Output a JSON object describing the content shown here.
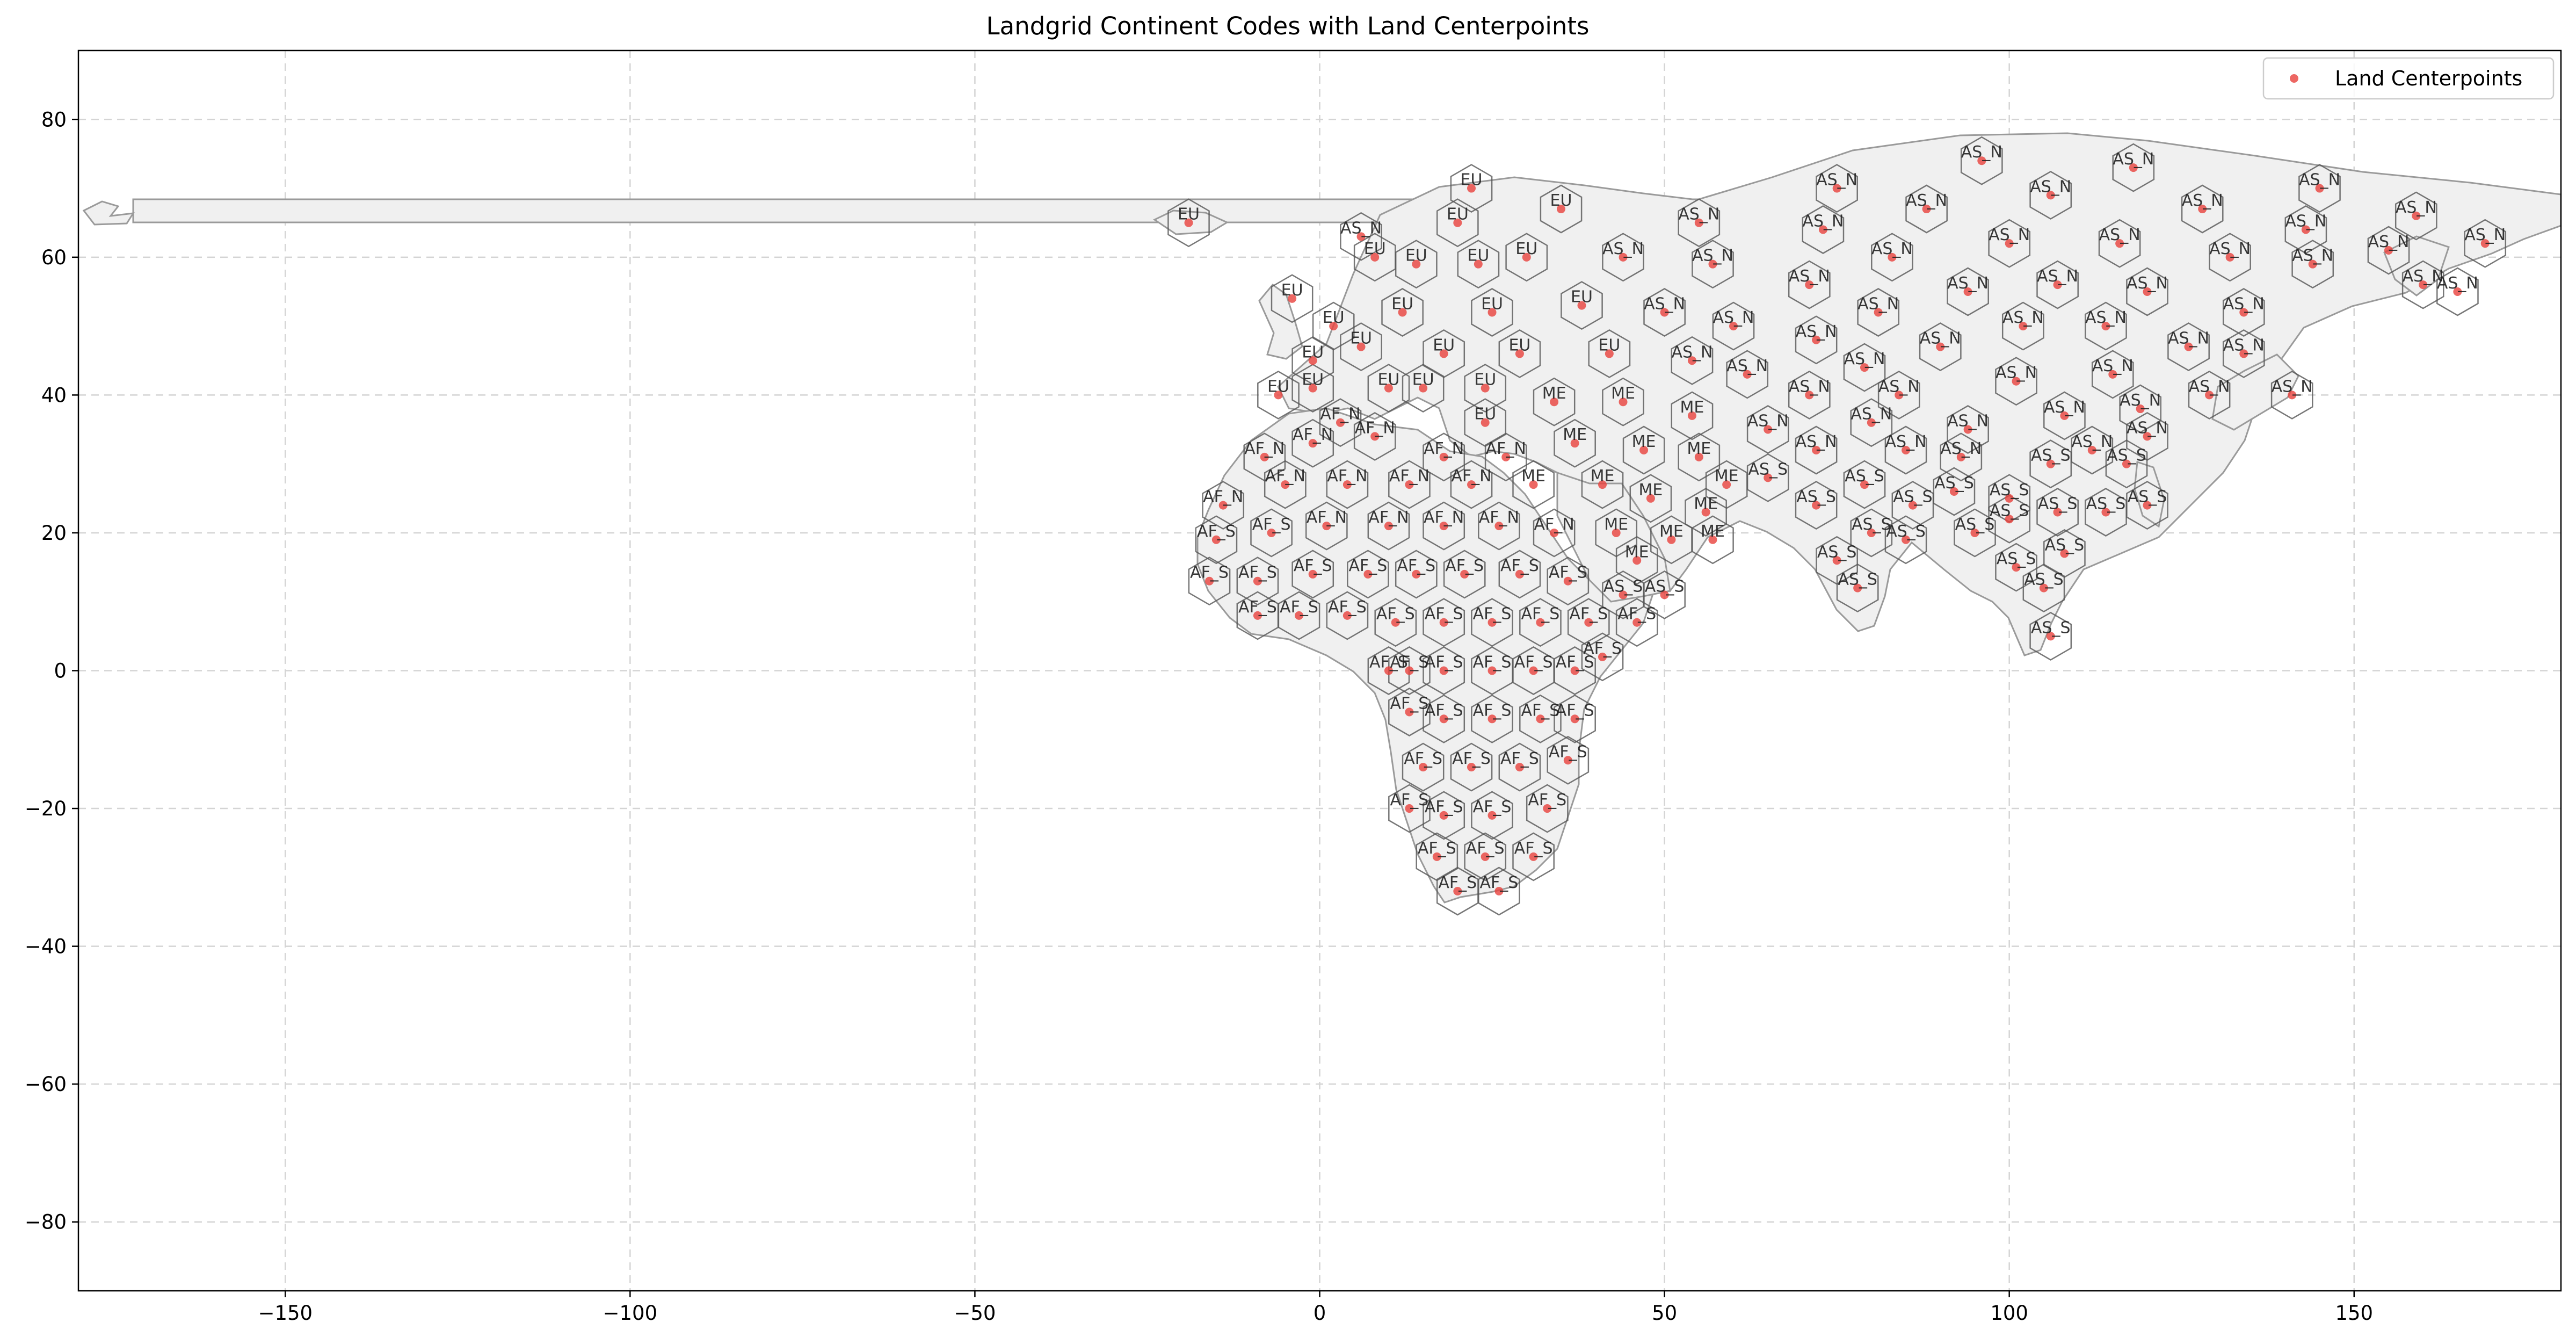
{
  "chart_data": {
    "type": "scatter",
    "title": "Landgrid Continent Codes with Land Centerpoints",
    "xlabel": "",
    "ylabel": "",
    "xlim": [
      -180,
      180
    ],
    "ylim": [
      -90,
      90
    ],
    "grid": true,
    "xticks": [
      -150,
      -100,
      -50,
      0,
      50,
      100,
      150
    ],
    "xtick_labels": [
      "−150",
      "−100",
      "−50",
      "0",
      "50",
      "100",
      "150"
    ],
    "yticks": [
      80,
      60,
      40,
      20,
      0,
      -20,
      -40,
      -60,
      -80
    ],
    "ytick_labels": [
      "80",
      "60",
      "40",
      "20",
      "0",
      "−20",
      "−40",
      "−60",
      "−80"
    ],
    "legend": {
      "placement": "top-right",
      "entries": [
        "Land Centerpoints"
      ]
    },
    "colors": {
      "points": "#e8413c",
      "cells_fill": "#f0f0f0",
      "cells_edge": "#555555",
      "grid": "#d4d4d4"
    },
    "series": [
      {
        "name": "Land Centerpoints",
        "points": [
          {
            "x": -19,
            "y": 65,
            "label": "EU"
          },
          {
            "x": 6,
            "y": 63,
            "label": "AS_N"
          },
          {
            "x": 22,
            "y": 70,
            "label": "EU"
          },
          {
            "x": 20,
            "y": 65,
            "label": "EU"
          },
          {
            "x": 35,
            "y": 67,
            "label": "EU"
          },
          {
            "x": 55,
            "y": 65,
            "label": "AS_N"
          },
          {
            "x": 75,
            "y": 70,
            "label": "AS_N"
          },
          {
            "x": 73,
            "y": 64,
            "label": "AS_N"
          },
          {
            "x": 88,
            "y": 67,
            "label": "AS_N"
          },
          {
            "x": 96,
            "y": 74,
            "label": "AS_N"
          },
          {
            "x": 106,
            "y": 69,
            "label": "AS_N"
          },
          {
            "x": 118,
            "y": 73,
            "label": "AS_N"
          },
          {
            "x": 128,
            "y": 67,
            "label": "AS_N"
          },
          {
            "x": 145,
            "y": 70,
            "label": "AS_N"
          },
          {
            "x": 159,
            "y": 66,
            "label": "AS_N"
          },
          {
            "x": 8,
            "y": 60,
            "label": "EU"
          },
          {
            "x": 14,
            "y": 59,
            "label": "EU"
          },
          {
            "x": 23,
            "y": 59,
            "label": "EU"
          },
          {
            "x": 30,
            "y": 60,
            "label": "EU"
          },
          {
            "x": 44,
            "y": 60,
            "label": "AS_N"
          },
          {
            "x": 57,
            "y": 59,
            "label": "AS_N"
          },
          {
            "x": 71,
            "y": 56,
            "label": "AS_N"
          },
          {
            "x": 83,
            "y": 60,
            "label": "AS_N"
          },
          {
            "x": 100,
            "y": 62,
            "label": "AS_N"
          },
          {
            "x": 116,
            "y": 62,
            "label": "AS_N"
          },
          {
            "x": 132,
            "y": 60,
            "label": "AS_N"
          },
          {
            "x": 143,
            "y": 64,
            "label": "AS_N"
          },
          {
            "x": 144,
            "y": 59,
            "label": "AS_N"
          },
          {
            "x": 155,
            "y": 61,
            "label": "AS_N"
          },
          {
            "x": 169,
            "y": 62,
            "label": "AS_N"
          },
          {
            "x": -4,
            "y": 54,
            "label": "EU"
          },
          {
            "x": 2,
            "y": 50,
            "label": "EU"
          },
          {
            "x": 12,
            "y": 52,
            "label": "EU"
          },
          {
            "x": 25,
            "y": 52,
            "label": "EU"
          },
          {
            "x": 38,
            "y": 53,
            "label": "EU"
          },
          {
            "x": 50,
            "y": 52,
            "label": "AS_N"
          },
          {
            "x": 60,
            "y": 50,
            "label": "AS_N"
          },
          {
            "x": 81,
            "y": 52,
            "label": "AS_N"
          },
          {
            "x": 94,
            "y": 55,
            "label": "AS_N"
          },
          {
            "x": 107,
            "y": 56,
            "label": "AS_N"
          },
          {
            "x": 120,
            "y": 55,
            "label": "AS_N"
          },
          {
            "x": 134,
            "y": 52,
            "label": "AS_N"
          },
          {
            "x": 160,
            "y": 56,
            "label": "AS_N"
          },
          {
            "x": 165,
            "y": 55,
            "label": "AS_N"
          },
          {
            "x": -1,
            "y": 45,
            "label": "EU"
          },
          {
            "x": 6,
            "y": 47,
            "label": "EU"
          },
          {
            "x": 18,
            "y": 46,
            "label": "EU"
          },
          {
            "x": 29,
            "y": 46,
            "label": "EU"
          },
          {
            "x": 42,
            "y": 46,
            "label": "EU"
          },
          {
            "x": 54,
            "y": 45,
            "label": "AS_N"
          },
          {
            "x": 62,
            "y": 43,
            "label": "AS_N"
          },
          {
            "x": 72,
            "y": 48,
            "label": "AS_N"
          },
          {
            "x": 79,
            "y": 44,
            "label": "AS_N"
          },
          {
            "x": 90,
            "y": 47,
            "label": "AS_N"
          },
          {
            "x": 102,
            "y": 50,
            "label": "AS_N"
          },
          {
            "x": 114,
            "y": 50,
            "label": "AS_N"
          },
          {
            "x": 126,
            "y": 47,
            "label": "AS_N"
          },
          {
            "x": 134,
            "y": 46,
            "label": "AS_N"
          },
          {
            "x": -6,
            "y": 40,
            "label": "EU"
          },
          {
            "x": -1,
            "y": 41,
            "label": "EU"
          },
          {
            "x": 10,
            "y": 41,
            "label": "EU"
          },
          {
            "x": 15,
            "y": 41,
            "label": "EU"
          },
          {
            "x": 24,
            "y": 41,
            "label": "EU"
          },
          {
            "x": 34,
            "y": 39,
            "label": "ME"
          },
          {
            "x": 44,
            "y": 39,
            "label": "ME"
          },
          {
            "x": 54,
            "y": 37,
            "label": "ME"
          },
          {
            "x": 65,
            "y": 35,
            "label": "AS_N"
          },
          {
            "x": 71,
            "y": 40,
            "label": "AS_N"
          },
          {
            "x": 84,
            "y": 40,
            "label": "AS_N"
          },
          {
            "x": 94,
            "y": 35,
            "label": "AS_N"
          },
          {
            "x": 101,
            "y": 42,
            "label": "AS_N"
          },
          {
            "x": 108,
            "y": 37,
            "label": "AS_N"
          },
          {
            "x": 115,
            "y": 43,
            "label": "AS_N"
          },
          {
            "x": 119,
            "y": 38,
            "label": "AS_N"
          },
          {
            "x": 129,
            "y": 40,
            "label": "AS_N"
          },
          {
            "x": 141,
            "y": 40,
            "label": "AS_N"
          },
          {
            "x": 3,
            "y": 36,
            "label": "AF_N"
          },
          {
            "x": 8,
            "y": 34,
            "label": "AF_N"
          },
          {
            "x": 24,
            "y": 36,
            "label": "EU"
          },
          {
            "x": 37,
            "y": 33,
            "label": "ME"
          },
          {
            "x": 47,
            "y": 32,
            "label": "ME"
          },
          {
            "x": 55,
            "y": 31,
            "label": "ME"
          },
          {
            "x": 59,
            "y": 27,
            "label": "ME"
          },
          {
            "x": 72,
            "y": 32,
            "label": "AS_N"
          },
          {
            "x": 80,
            "y": 36,
            "label": "AS_N"
          },
          {
            "x": 85,
            "y": 32,
            "label": "AS_N"
          },
          {
            "x": 93,
            "y": 31,
            "label": "AS_N"
          },
          {
            "x": 106,
            "y": 30,
            "label": "AS_S"
          },
          {
            "x": 112,
            "y": 32,
            "label": "AS_N"
          },
          {
            "x": 117,
            "y": 30,
            "label": "AS_S"
          },
          {
            "x": 120,
            "y": 34,
            "label": "AS_N"
          },
          {
            "x": -8,
            "y": 31,
            "label": "AF_N"
          },
          {
            "x": -1,
            "y": 33,
            "label": "AF_N"
          },
          {
            "x": 18,
            "y": 31,
            "label": "AF_N"
          },
          {
            "x": 27,
            "y": 31,
            "label": "AF_N"
          },
          {
            "x": 31,
            "y": 27,
            "label": "ME"
          },
          {
            "x": 41,
            "y": 27,
            "label": "ME"
          },
          {
            "x": 48,
            "y": 25,
            "label": "ME"
          },
          {
            "x": 65,
            "y": 28,
            "label": "AS_S"
          },
          {
            "x": 72,
            "y": 24,
            "label": "AS_S"
          },
          {
            "x": 79,
            "y": 27,
            "label": "AS_S"
          },
          {
            "x": 86,
            "y": 24,
            "label": "AS_S"
          },
          {
            "x": 92,
            "y": 26,
            "label": "AS_S"
          },
          {
            "x": 100,
            "y": 25,
            "label": "AS_S"
          },
          {
            "x": 114,
            "y": 23,
            "label": "AS_S"
          },
          {
            "x": 120,
            "y": 24,
            "label": "AS_S"
          },
          {
            "x": -14,
            "y": 24,
            "label": "AF_N"
          },
          {
            "x": -5,
            "y": 27,
            "label": "AF_N"
          },
          {
            "x": 4,
            "y": 27,
            "label": "AF_N"
          },
          {
            "x": 13,
            "y": 27,
            "label": "AF_N"
          },
          {
            "x": 22,
            "y": 27,
            "label": "AF_N"
          },
          {
            "x": 56,
            "y": 23,
            "label": "ME"
          },
          {
            "x": 43,
            "y": 20,
            "label": "ME"
          },
          {
            "x": 51,
            "y": 19,
            "label": "ME"
          },
          {
            "x": 57,
            "y": 19,
            "label": "ME"
          },
          {
            "x": 80,
            "y": 20,
            "label": "AS_S"
          },
          {
            "x": 85,
            "y": 19,
            "label": "AS_S"
          },
          {
            "x": 95,
            "y": 20,
            "label": "AS_S"
          },
          {
            "x": 100,
            "y": 22,
            "label": "AS_S"
          },
          {
            "x": 107,
            "y": 23,
            "label": "AS_S"
          },
          {
            "x": 108,
            "y": 17,
            "label": "AS_S"
          },
          {
            "x": -15,
            "y": 19,
            "label": "AF_S"
          },
          {
            "x": -7,
            "y": 20,
            "label": "AF_S"
          },
          {
            "x": 1,
            "y": 21,
            "label": "AF_N"
          },
          {
            "x": 10,
            "y": 21,
            "label": "AF_N"
          },
          {
            "x": 18,
            "y": 21,
            "label": "AF_N"
          },
          {
            "x": 26,
            "y": 21,
            "label": "AF_N"
          },
          {
            "x": 34,
            "y": 20,
            "label": "AF_N"
          },
          {
            "x": 46,
            "y": 16,
            "label": "ME"
          },
          {
            "x": 75,
            "y": 16,
            "label": "AS_S"
          },
          {
            "x": 78,
            "y": 12,
            "label": "AS_S"
          },
          {
            "x": 101,
            "y": 15,
            "label": "AS_S"
          },
          {
            "x": 105,
            "y": 12,
            "label": "AS_S"
          },
          {
            "x": -16,
            "y": 13,
            "label": "AF_S"
          },
          {
            "x": -9,
            "y": 13,
            "label": "AF_S"
          },
          {
            "x": -1,
            "y": 14,
            "label": "AF_S"
          },
          {
            "x": 7,
            "y": 14,
            "label": "AF_S"
          },
          {
            "x": 14,
            "y": 14,
            "label": "AF_S"
          },
          {
            "x": 21,
            "y": 14,
            "label": "AF_S"
          },
          {
            "x": 29,
            "y": 14,
            "label": "AF_S"
          },
          {
            "x": 36,
            "y": 13,
            "label": "AF_S"
          },
          {
            "x": 44,
            "y": 11,
            "label": "AS_S"
          },
          {
            "x": 50,
            "y": 11,
            "label": "AS_S"
          },
          {
            "x": -9,
            "y": 8,
            "label": "AF_S"
          },
          {
            "x": -3,
            "y": 8,
            "label": "AF_S"
          },
          {
            "x": 4,
            "y": 8,
            "label": "AF_S"
          },
          {
            "x": 11,
            "y": 7,
            "label": "AF_S"
          },
          {
            "x": 18,
            "y": 7,
            "label": "AF_S"
          },
          {
            "x": 25,
            "y": 7,
            "label": "AF_S"
          },
          {
            "x": 32,
            "y": 7,
            "label": "AF_S"
          },
          {
            "x": 39,
            "y": 7,
            "label": "AF_S"
          },
          {
            "x": 46,
            "y": 7,
            "label": "AF_S"
          },
          {
            "x": 106,
            "y": 5,
            "label": "AS_S"
          },
          {
            "x": 10,
            "y": 0,
            "label": "AF_S"
          },
          {
            "x": 13,
            "y": 0,
            "label": "AF_S"
          },
          {
            "x": 18,
            "y": 0,
            "label": "AF_S"
          },
          {
            "x": 25,
            "y": 0,
            "label": "AF_S"
          },
          {
            "x": 31,
            "y": 0,
            "label": "AF_S"
          },
          {
            "x": 37,
            "y": 0,
            "label": "AF_S"
          },
          {
            "x": 41,
            "y": 2,
            "label": "AF_S"
          },
          {
            "x": 13,
            "y": -6,
            "label": "AF_S"
          },
          {
            "x": 18,
            "y": -7,
            "label": "AF_S"
          },
          {
            "x": 25,
            "y": -7,
            "label": "AF_S"
          },
          {
            "x": 32,
            "y": -7,
            "label": "AF_S"
          },
          {
            "x": 37,
            "y": -7,
            "label": "AF_S"
          },
          {
            "x": 15,
            "y": -14,
            "label": "AF_S"
          },
          {
            "x": 22,
            "y": -14,
            "label": "AF_S"
          },
          {
            "x": 29,
            "y": -14,
            "label": "AF_S"
          },
          {
            "x": 36,
            "y": -13,
            "label": "AF_S"
          },
          {
            "x": 13,
            "y": -20,
            "label": "AF_S"
          },
          {
            "x": 18,
            "y": -21,
            "label": "AF_S"
          },
          {
            "x": 25,
            "y": -21,
            "label": "AF_S"
          },
          {
            "x": 33,
            "y": -20,
            "label": "AF_S"
          },
          {
            "x": 17,
            "y": -27,
            "label": "AF_S"
          },
          {
            "x": 24,
            "y": -27,
            "label": "AF_S"
          },
          {
            "x": 31,
            "y": -27,
            "label": "AF_S"
          },
          {
            "x": 20,
            "y": -32,
            "label": "AF_S"
          },
          {
            "x": 26,
            "y": -32,
            "label": "AF_S"
          }
        ]
      }
    ]
  }
}
